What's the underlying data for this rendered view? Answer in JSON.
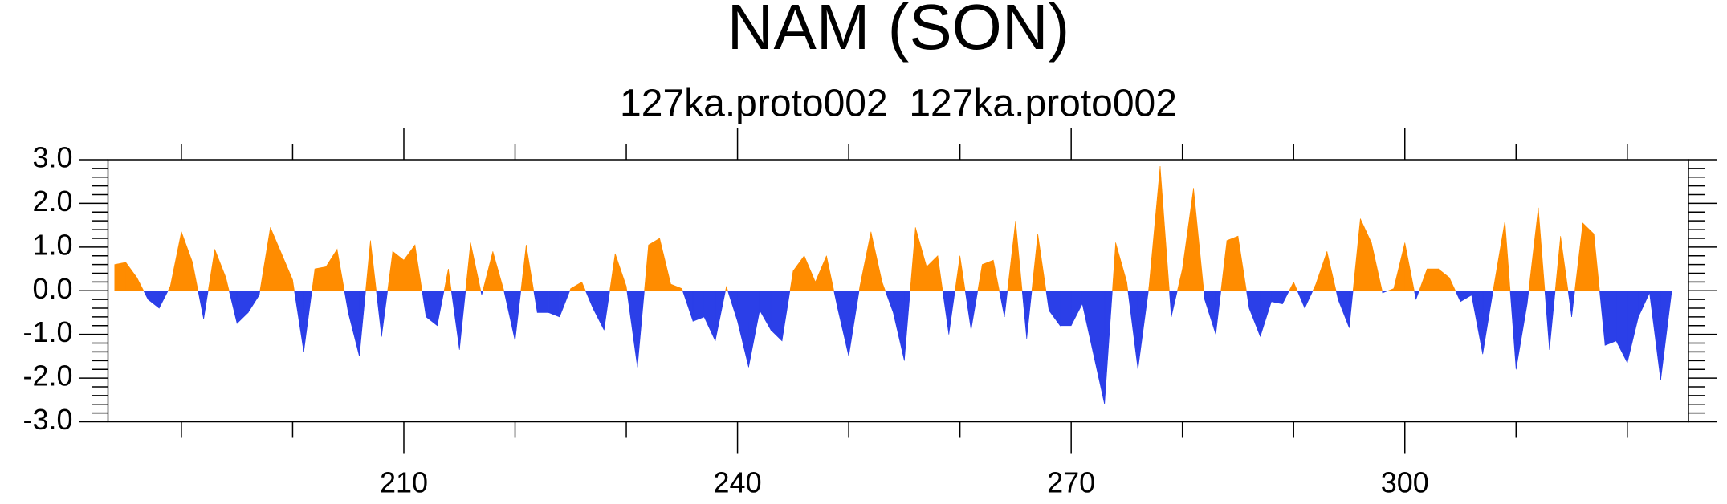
{
  "chart_data": {
    "type": "area",
    "title": "NAM (SON)",
    "subtitle": "127ka.proto002  127ka.proto002",
    "x": [
      184,
      185,
      186,
      187,
      188,
      189,
      190,
      191,
      192,
      193,
      194,
      195,
      196,
      197,
      198,
      199,
      200,
      201,
      202,
      203,
      204,
      205,
      206,
      207,
      208,
      209,
      210,
      211,
      212,
      213,
      214,
      215,
      216,
      217,
      218,
      219,
      220,
      221,
      222,
      223,
      224,
      225,
      226,
      227,
      228,
      229,
      230,
      231,
      232,
      233,
      234,
      235,
      236,
      237,
      238,
      239,
      240,
      241,
      242,
      243,
      244,
      245,
      246,
      247,
      248,
      249,
      250,
      251,
      252,
      253,
      254,
      255,
      256,
      257,
      258,
      259,
      260,
      261,
      262,
      263,
      264,
      265,
      266,
      267,
      268,
      269,
      270,
      271,
      272,
      273,
      274,
      275,
      276,
      277,
      278,
      279,
      280,
      281,
      282,
      283,
      284,
      285,
      286,
      287,
      288,
      289,
      290,
      291,
      292,
      293,
      294,
      295,
      296,
      297,
      298,
      299,
      300,
      301,
      302,
      303,
      304,
      305,
      306,
      307,
      308,
      309,
      310,
      311,
      312,
      313,
      314,
      315,
      316,
      317,
      318,
      319,
      320,
      321,
      322,
      323,
      324
    ],
    "values": [
      0.6,
      0.65,
      0.3,
      -0.2,
      -0.4,
      0.1,
      1.35,
      0.65,
      -0.65,
      0.95,
      0.3,
      -0.75,
      -0.5,
      -0.1,
      1.45,
      0.85,
      0.25,
      -1.4,
      0.5,
      0.55,
      0.95,
      -0.5,
      -1.5,
      1.15,
      -1.05,
      0.9,
      0.7,
      1.05,
      -0.6,
      -0.8,
      0.5,
      -1.35,
      1.1,
      -0.1,
      0.9,
      0.0,
      -1.15,
      1.05,
      -0.5,
      -0.5,
      -0.6,
      0.05,
      0.2,
      -0.4,
      -0.9,
      0.85,
      0.1,
      -1.75,
      1.05,
      1.2,
      0.15,
      0.05,
      -0.7,
      -0.6,
      -1.15,
      0.1,
      -0.7,
      -1.75,
      -0.45,
      -0.9,
      -1.15,
      0.45,
      0.8,
      0.2,
      0.8,
      -0.4,
      -1.5,
      0.1,
      1.35,
      0.2,
      -0.5,
      -1.6,
      1.45,
      0.55,
      0.8,
      -1.0,
      0.8,
      -0.9,
      0.6,
      0.7,
      -0.6,
      1.6,
      -1.1,
      1.3,
      -0.45,
      -0.8,
      -0.8,
      -0.3,
      -1.45,
      -2.6,
      1.1,
      0.2,
      -1.8,
      0.1,
      2.85,
      -0.6,
      0.5,
      2.35,
      -0.2,
      -1.0,
      1.15,
      1.25,
      -0.4,
      -1.05,
      -0.25,
      -0.3,
      0.2,
      -0.4,
      0.15,
      0.9,
      -0.2,
      -0.85,
      1.65,
      1.1,
      -0.05,
      0.05,
      1.1,
      -0.2,
      0.5,
      0.5,
      0.3,
      -0.25,
      -0.1,
      -1.45,
      0.1,
      1.6,
      -1.8,
      -0.3,
      1.9,
      -1.35,
      1.25,
      -0.6,
      1.55,
      1.3,
      -1.25,
      -1.15,
      -1.65,
      -0.6,
      -0.05,
      -2.05,
      0.0
    ],
    "positive_color": "#ff8c00",
    "negative_color": "#2b3fe8",
    "xlim": [
      183.4,
      325.5
    ],
    "ylim": [
      -3,
      3
    ],
    "xticks": [
      210,
      240,
      270,
      300
    ],
    "xminorticks": [
      190,
      200,
      220,
      230,
      250,
      260,
      280,
      290,
      310,
      320
    ],
    "yticks": [
      {
        "value": 3,
        "label": "3.0"
      },
      {
        "value": 2,
        "label": "2.0"
      },
      {
        "value": 1,
        "label": "1.0"
      },
      {
        "value": 0,
        "label": "0.0"
      },
      {
        "value": -1,
        "label": "-1.0"
      },
      {
        "value": -2,
        "label": "-2.0"
      },
      {
        "value": -3,
        "label": "-3.0"
      }
    ],
    "yminorticks": [
      2.8,
      2.6,
      2.4,
      2.2,
      1.8,
      1.6,
      1.4,
      1.2,
      0.8,
      0.6,
      0.4,
      0.2,
      -0.2,
      -0.4,
      -0.6,
      -0.8,
      -1.2,
      -1.4,
      -1.6,
      -1.8,
      -2.2,
      -2.4,
      -2.6,
      -2.8
    ]
  }
}
